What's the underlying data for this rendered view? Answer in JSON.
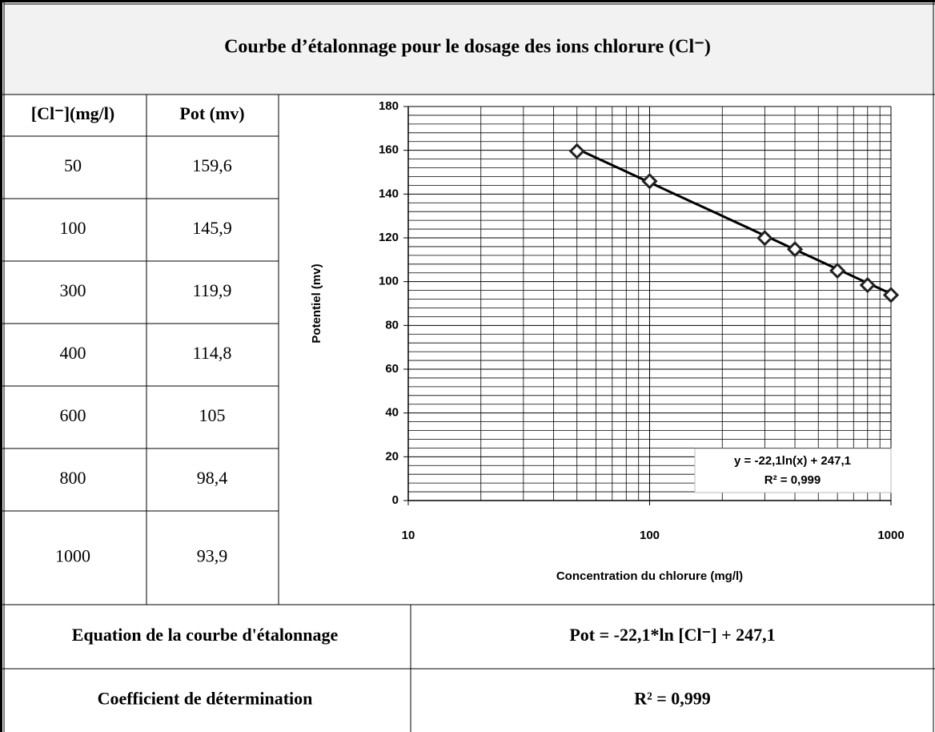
{
  "title": "Courbe d’étalonnage pour le dosage des ions chlorure (Cl⁻)",
  "table": {
    "header": [
      "[Cl⁻](mg/l)",
      "Pot (mv)"
    ],
    "rows": [
      [
        "50",
        "159,6"
      ],
      [
        "100",
        "145,9"
      ],
      [
        "300",
        "119,9"
      ],
      [
        "400",
        "114,8"
      ],
      [
        "600",
        "105"
      ],
      [
        "800",
        "98,4"
      ],
      [
        "1000",
        "93,9"
      ]
    ]
  },
  "chart_data": {
    "type": "scatter",
    "xlabel": "Concentration du chlorure (mg/l)",
    "ylabel": "Potentiel (mv)",
    "x": [
      50,
      100,
      300,
      400,
      600,
      800,
      1000
    ],
    "series": [
      {
        "color": "#222222",
        "values": [
          159.6,
          145.9,
          119.9,
          114.8,
          105,
          98.4,
          93.9
        ]
      }
    ],
    "log_x": true,
    "grid": true,
    "xlim": [
      10,
      1000
    ],
    "xticks": [
      10,
      100,
      1000
    ],
    "minor_xticks": [
      20,
      30,
      40,
      50,
      60,
      70,
      80,
      90,
      200,
      300,
      400,
      500,
      600,
      700,
      800,
      900
    ],
    "ylim": [
      0,
      180
    ],
    "yticks": [
      0,
      20,
      40,
      60,
      80,
      100,
      120,
      140,
      160,
      180
    ],
    "minor_yticks": [
      4,
      8,
      12,
      16,
      24,
      28,
      32,
      36,
      44,
      48,
      52,
      56,
      64,
      68,
      72,
      76,
      84,
      88,
      92,
      96,
      104,
      108,
      112,
      116,
      124,
      128,
      132,
      136,
      144,
      148,
      152,
      156,
      164,
      168,
      172,
      176
    ],
    "trendline": {
      "a": -22.1,
      "b": 247.1,
      "xrange": [
        50,
        1000
      ],
      "label": "y = -22,1ln(x) + 247,1",
      "r2_label": "R² = 0,999"
    }
  },
  "summary": {
    "rows": [
      [
        "Equation de la courbe d'étalonnage",
        "Pot = -22,1*ln [Cl⁻] + 247,1"
      ],
      [
        "Coefficient de détermination",
        "R² = 0,999"
      ]
    ]
  }
}
